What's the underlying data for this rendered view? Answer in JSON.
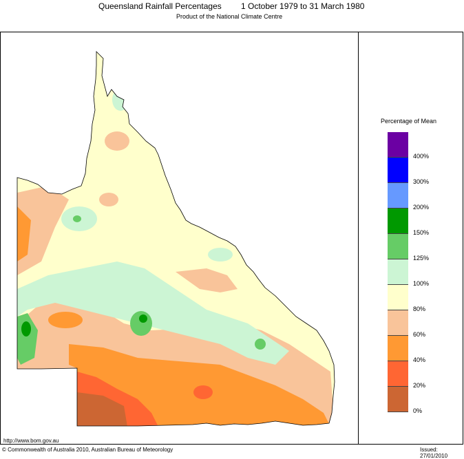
{
  "header": {
    "title": "Queensland Rainfall Percentages",
    "period": "1 October 1979 to 31 March 1980",
    "subtitle": "Product of the National Climate Centre"
  },
  "legend": {
    "title": "Percentage of Mean",
    "bins": [
      {
        "label": "400%",
        "color": "#6b00a3"
      },
      {
        "label": "300%",
        "color": "#0000ff"
      },
      {
        "label": "200%",
        "color": "#6699ff"
      },
      {
        "label": "150%",
        "color": "#009900"
      },
      {
        "label": "125%",
        "color": "#66cc66"
      },
      {
        "label": "100%",
        "color": "#ccf5d4"
      },
      {
        "label": "80%",
        "color": "#ffffcc"
      },
      {
        "label": "60%",
        "color": "#f9c49a"
      },
      {
        "label": "40%",
        "color": "#ff9933"
      },
      {
        "label": "20%",
        "color": "#ff6633"
      },
      {
        "label": "0%",
        "color": "#cc6633"
      }
    ]
  },
  "footer": {
    "url": "http://www.bom.gov.au",
    "copyright": "© Commonwealth of Australia 2010, Australian Bureau of Meteorology",
    "issued": "Issued: 27/01/2010"
  }
}
